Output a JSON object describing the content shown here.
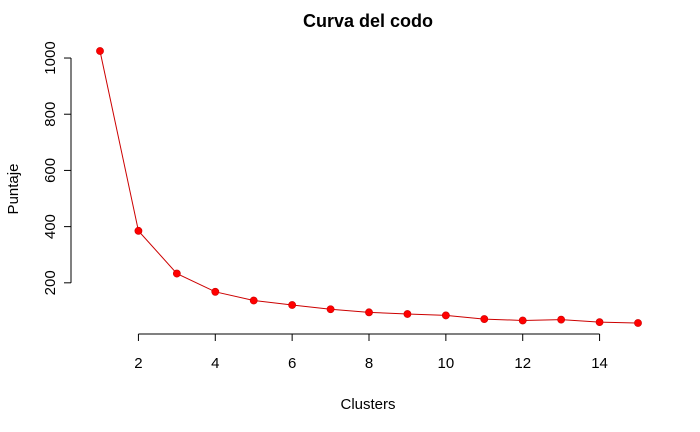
{
  "chart_data": {
    "type": "line",
    "title": "Curva del codo",
    "xlabel": "Clusters",
    "ylabel": "Puntaje",
    "x": [
      1,
      2,
      3,
      4,
      5,
      6,
      7,
      8,
      9,
      10,
      11,
      12,
      13,
      14,
      15
    ],
    "series": [
      {
        "values": [
          1025,
          385,
          233,
          168,
          137,
          121,
          106,
          95,
          89,
          84,
          71,
          66,
          69,
          60,
          57
        ]
      }
    ],
    "xticks": [
      2,
      4,
      6,
      8,
      10,
      12,
      14
    ],
    "yticks": [
      200,
      400,
      600,
      800,
      1000
    ],
    "xlim": [
      1,
      15
    ],
    "ylim": [
      57,
      1025
    ],
    "grid": false,
    "line_color": "#cc0000",
    "marker_color": "#ff0000"
  }
}
